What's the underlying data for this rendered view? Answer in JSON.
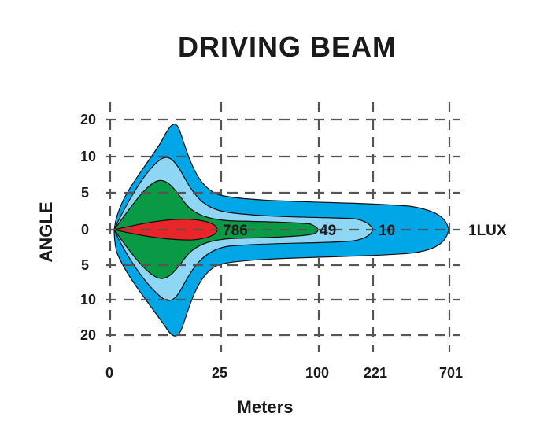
{
  "chart_data": {
    "type": "beam-pattern",
    "title": "DRIVING BEAM",
    "xlabel": "Meters",
    "ylabel": "ANGLE",
    "x_ticks": [
      "0",
      "25",
      "100",
      "221",
      "701"
    ],
    "y_ticks": [
      "20",
      "10",
      "5",
      "0",
      "5",
      "10",
      "20"
    ],
    "contours": [
      {
        "lux": "1LUX",
        "reach": "701",
        "color": "#00a6e6"
      },
      {
        "lux": "10",
        "reach": "221",
        "color": "#8fd6f5"
      },
      {
        "lux": "49",
        "reach": "100",
        "color": "#0a9a45"
      },
      {
        "lux": "786",
        "reach": "25",
        "color": "#e8262a"
      }
    ]
  }
}
